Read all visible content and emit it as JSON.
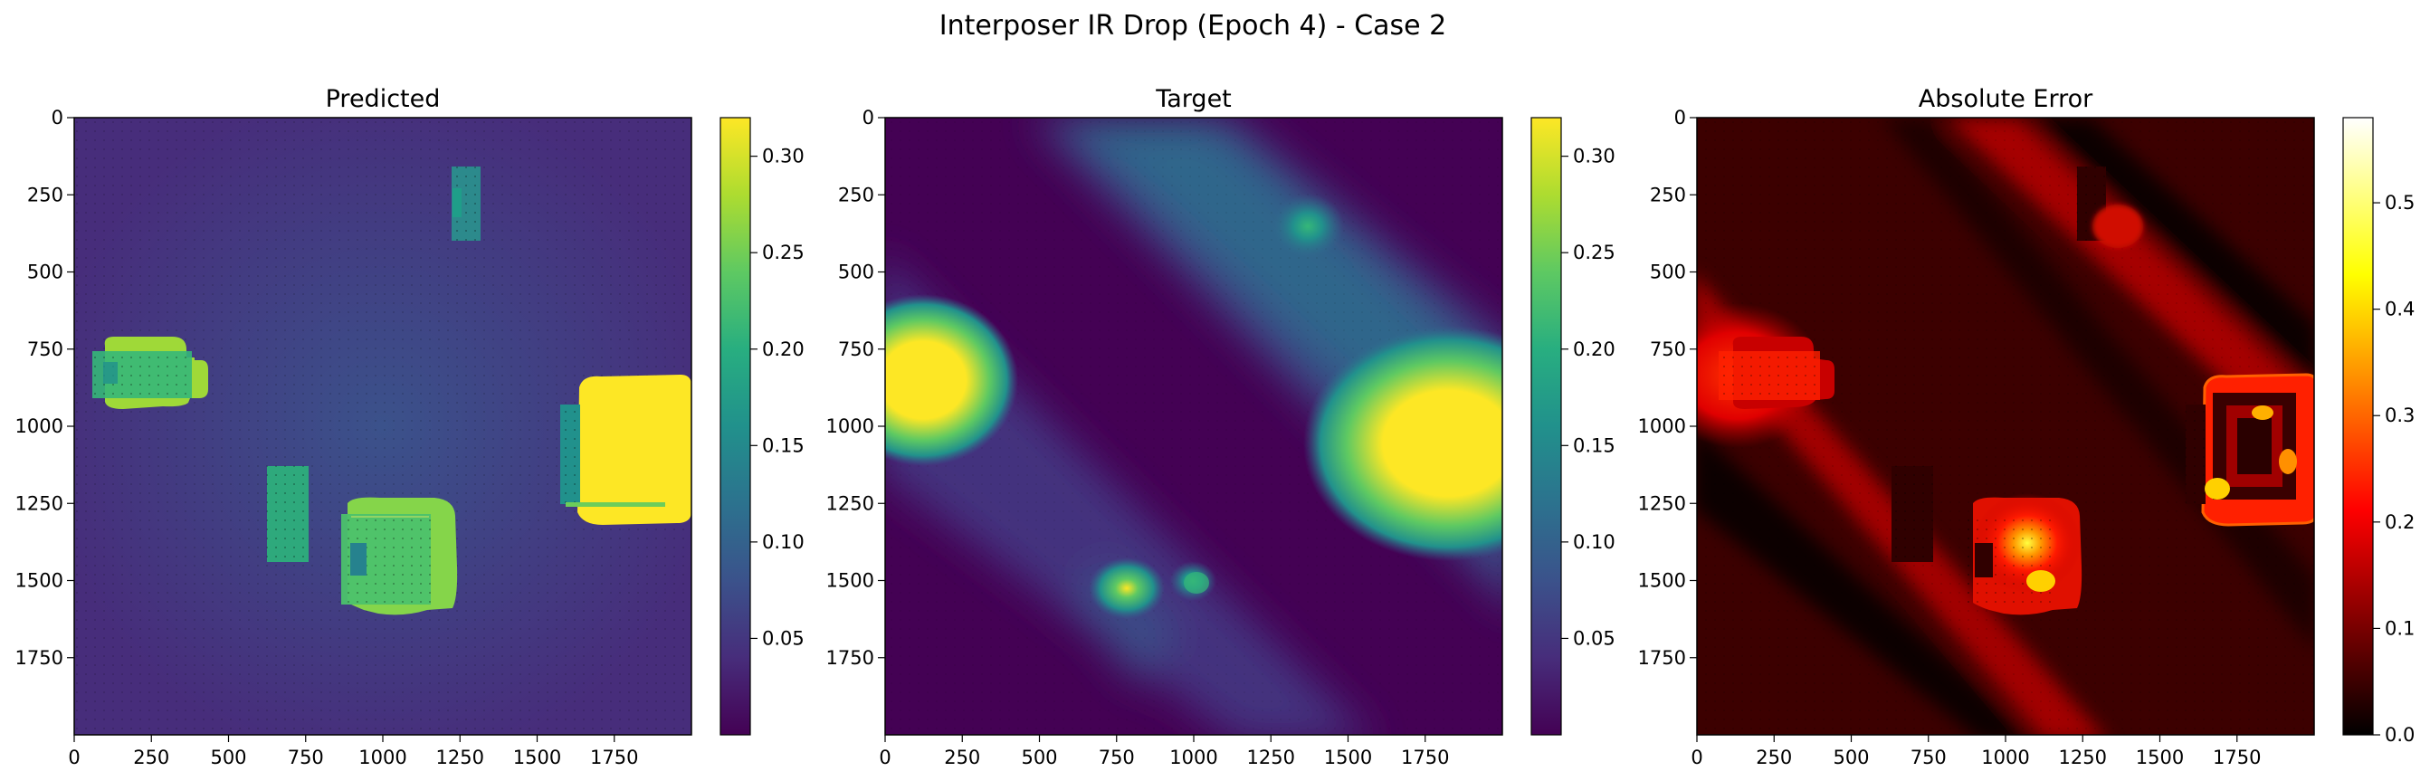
{
  "chart_data": {
    "title": "Interposer IR Drop (Epoch 4) - Case 2",
    "panels": [
      {
        "type": "heatmap",
        "title": "Predicted",
        "colormap": "viridis",
        "xlim": [
          0,
          2000
        ],
        "ylim": [
          2000,
          0
        ],
        "xticks": [
          0,
          250,
          500,
          750,
          1000,
          1250,
          1500,
          1750
        ],
        "yticks": [
          0,
          250,
          500,
          750,
          1000,
          1250,
          1500,
          1750
        ],
        "colorbar": {
          "range": [
            0.0,
            0.32
          ],
          "ticks": [
            0.05,
            0.1,
            0.15,
            0.2,
            0.25,
            0.3
          ],
          "tick_labels": [
            "0.05",
            "0.10",
            "0.15",
            "0.20",
            "0.25",
            "0.30"
          ]
        },
        "background_value": 0.06,
        "regions": [
          {
            "x": [
              100,
              420
            ],
            "y": [
              720,
              950
            ],
            "value": 0.245
          },
          {
            "x": [
              60,
              260
            ],
            "y": [
              760,
              920
            ],
            "value": 0.17
          },
          {
            "x": [
              1220,
              1320
            ],
            "y": [
              160,
              400
            ],
            "value": 0.14
          },
          {
            "x": [
              630,
              760
            ],
            "y": [
              1130,
              1440
            ],
            "value": 0.16
          },
          {
            "x": [
              860,
              1240
            ],
            "y": [
              1260,
              1600
            ],
            "value": 0.25
          },
          {
            "x": [
              870,
              1160
            ],
            "y": [
              1280,
              1570
            ],
            "value": 0.19
          },
          {
            "x": [
              1580,
              2000
            ],
            "y": [
              840,
              1290
            ],
            "value": 0.32
          },
          {
            "x": [
              1600,
              1900
            ],
            "y": [
              920,
              1260
            ],
            "value": 0.21
          }
        ]
      },
      {
        "type": "heatmap",
        "title": "Target",
        "colormap": "viridis",
        "xlim": [
          0,
          2000
        ],
        "ylim": [
          2000,
          0
        ],
        "xticks": [
          0,
          250,
          500,
          750,
          1000,
          1250,
          1500,
          1750
        ],
        "yticks": [
          0,
          250,
          500,
          750,
          1000,
          1250,
          1500,
          1750
        ],
        "colorbar": {
          "range": [
            0.0,
            0.32
          ],
          "ticks": [
            0.05,
            0.1,
            0.15,
            0.2,
            0.25,
            0.3
          ],
          "tick_labels": [
            "0.05",
            "0.10",
            "0.15",
            "0.20",
            "0.25",
            "0.30"
          ]
        },
        "background_value": 0.005,
        "hotspots": [
          {
            "x": 120,
            "y": 830,
            "value": 0.32
          },
          {
            "x": 1800,
            "y": 1050,
            "value": 0.32
          },
          {
            "x": 1370,
            "y": 350,
            "value": 0.17
          },
          {
            "x": 780,
            "y": 1390,
            "value": 0.27
          },
          {
            "x": 1000,
            "y": 1500,
            "value": 0.2
          }
        ]
      },
      {
        "type": "heatmap",
        "title": "Absolute Error",
        "colormap": "hot",
        "xlim": [
          0,
          2000
        ],
        "ylim": [
          2000,
          0
        ],
        "xticks": [
          0,
          250,
          500,
          750,
          1000,
          1250,
          1500,
          1750
        ],
        "yticks": [
          0,
          250,
          500,
          750,
          1000,
          1250,
          1500,
          1750
        ],
        "colorbar": {
          "range": [
            0.0,
            0.58
          ],
          "ticks": [
            0.0,
            0.1,
            0.2,
            0.3,
            0.4,
            0.5
          ],
          "tick_labels": [
            "0.0",
            "0.1",
            "0.2",
            "0.3",
            "0.4",
            "0.5"
          ]
        },
        "background_value": 0.05,
        "hotspots": [
          {
            "x": 120,
            "y": 830,
            "value": 0.25
          },
          {
            "x": 1050,
            "y": 1380,
            "value": 0.3
          },
          {
            "x": 1200,
            "y": 1450,
            "value": 0.38
          },
          {
            "x": 1700,
            "y": 1150,
            "value": 0.4
          },
          {
            "x": 1370,
            "y": 300,
            "value": 0.18
          }
        ]
      }
    ]
  }
}
